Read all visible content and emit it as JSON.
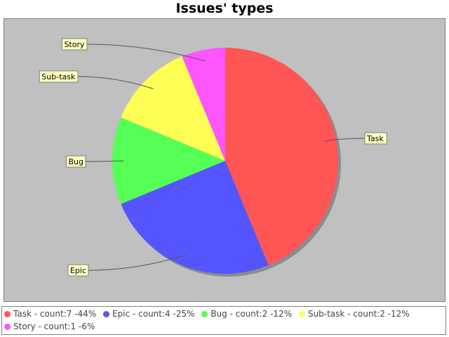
{
  "chart_data": {
    "type": "pie",
    "title": "Issues' types",
    "slices": [
      {
        "label": "Task",
        "value": 7,
        "color": "#ff5555",
        "legend": "Task - count:7 -44%"
      },
      {
        "label": "Epic",
        "value": 4,
        "color": "#5555ff",
        "legend": "Epic - count:4 -25%"
      },
      {
        "label": "Bug",
        "value": 2,
        "color": "#55ff55",
        "legend": "Bug - count:2 -12%"
      },
      {
        "label": "Sub-task",
        "value": 2,
        "color": "#ffff55",
        "legend": "Sub-task - count:2 -12%"
      },
      {
        "label": "Story",
        "value": 1,
        "color": "#ff55ff",
        "legend": "Story - count:1 -6%"
      }
    ],
    "legend_position": "bottom",
    "plot_background": "#c0c0c0"
  }
}
